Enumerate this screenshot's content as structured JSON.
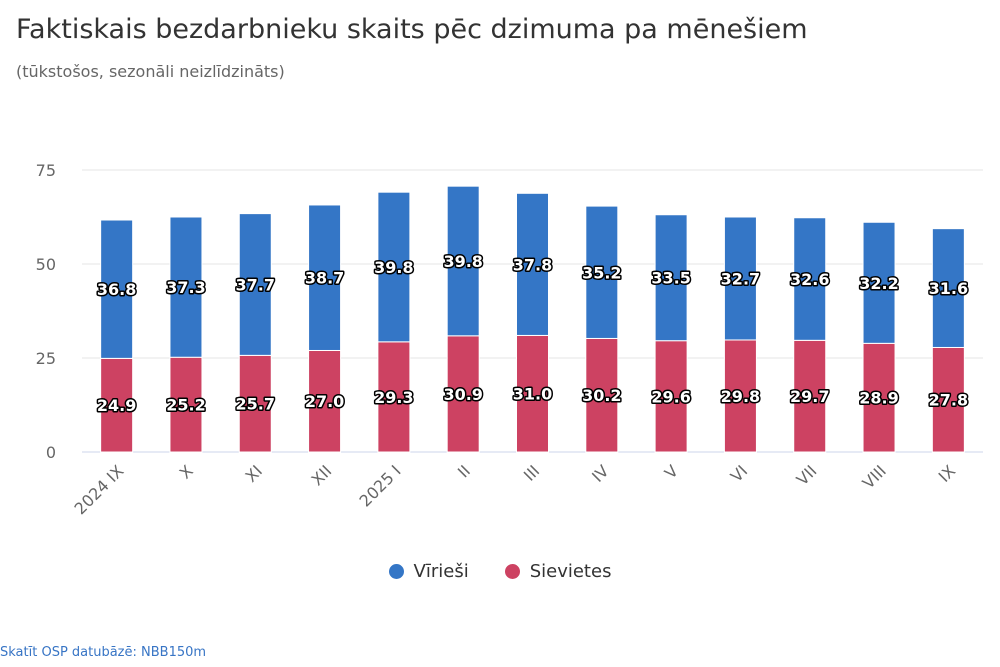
{
  "chart_data": {
    "type": "bar",
    "stacked": true,
    "title": "Faktiskais bezdarbnieku skaits pēc dzimuma pa mēnešiem",
    "subtitle": "(tūkstošos, sezonāli neizlīdzināts)",
    "categories": [
      "2024 IX",
      "X",
      "XI",
      "XII",
      "2025 I",
      "II",
      "III",
      "IV",
      "V",
      "VI",
      "VII",
      "VIII",
      "IX"
    ],
    "series": [
      {
        "name": "Vīrieši",
        "color": "#3476c6",
        "values": [
          36.8,
          37.3,
          37.7,
          38.7,
          39.8,
          39.8,
          37.8,
          35.2,
          33.5,
          32.7,
          32.6,
          32.2,
          31.6
        ]
      },
      {
        "name": "Sievietes",
        "color": "#cd4262",
        "values": [
          24.9,
          25.2,
          25.7,
          27.0,
          29.3,
          30.9,
          31.0,
          30.2,
          29.6,
          29.8,
          29.7,
          28.9,
          27.8
        ]
      }
    ],
    "ylim": [
      0,
      75
    ],
    "yticks": [
      0,
      25,
      50,
      75
    ],
    "grid": true,
    "legend": "bottom-center"
  },
  "source_link": "Skatīt OSP datubāzē: NBB150m"
}
